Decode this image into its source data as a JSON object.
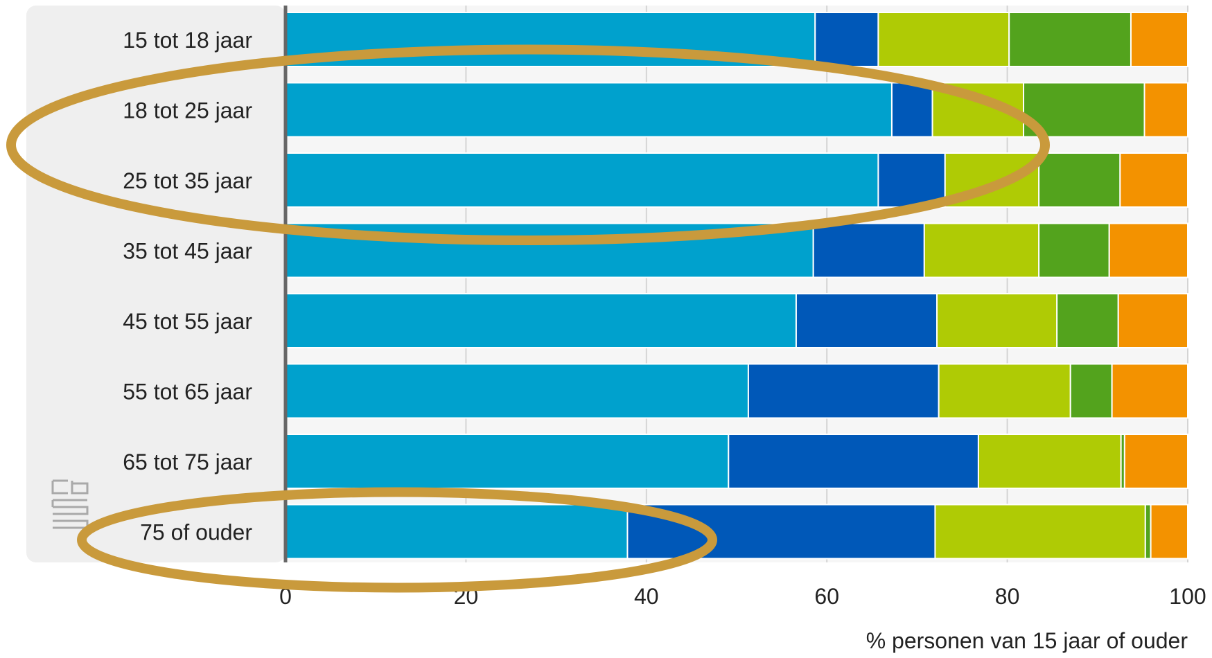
{
  "chart_data": {
    "type": "bar",
    "orientation": "horizontal",
    "stacked": true,
    "categories": [
      "15 tot 18 jaar",
      "18 tot 25 jaar",
      "25 tot 35 jaar",
      "35 tot 45 jaar",
      "45 tot 55 jaar",
      "55 tot 65 jaar",
      "65 tot 75 jaar",
      "75 of ouder"
    ],
    "series": [
      {
        "color": "#00a1cd",
        "values": [
          58.7,
          67.2,
          65.7,
          58.5,
          56.6,
          51.3,
          49.1,
          37.9
        ]
      },
      {
        "color": "#0058b8",
        "values": [
          7.0,
          4.5,
          7.4,
          12.3,
          15.6,
          21.1,
          27.7,
          34.1
        ]
      },
      {
        "color": "#afcb05",
        "values": [
          14.5,
          10.1,
          10.4,
          12.7,
          13.3,
          14.6,
          15.8,
          23.3
        ]
      },
      {
        "color": "#53a31d",
        "values": [
          13.5,
          13.4,
          9.0,
          7.8,
          6.8,
          4.6,
          0.4,
          0.6
        ]
      },
      {
        "color": "#f39200",
        "values": [
          6.3,
          4.8,
          7.5,
          8.7,
          7.7,
          8.4,
          7.0,
          4.1
        ]
      }
    ],
    "xticks": [
      "0",
      "20",
      "40",
      "60",
      "80",
      "100"
    ],
    "xlim": [
      0,
      100
    ],
    "xlabel": "% personen van 15 jaar of ouder",
    "grid": true,
    "annotations": [
      {
        "type": "ellipse",
        "color": "#c99a3c",
        "around": [
          "18 tot 25 jaar",
          "25 tot 35 jaar"
        ]
      },
      {
        "type": "ellipse",
        "color": "#c99a3c",
        "around": [
          "75 of ouder"
        ]
      }
    ],
    "logo": "cbs-logo-icon"
  }
}
